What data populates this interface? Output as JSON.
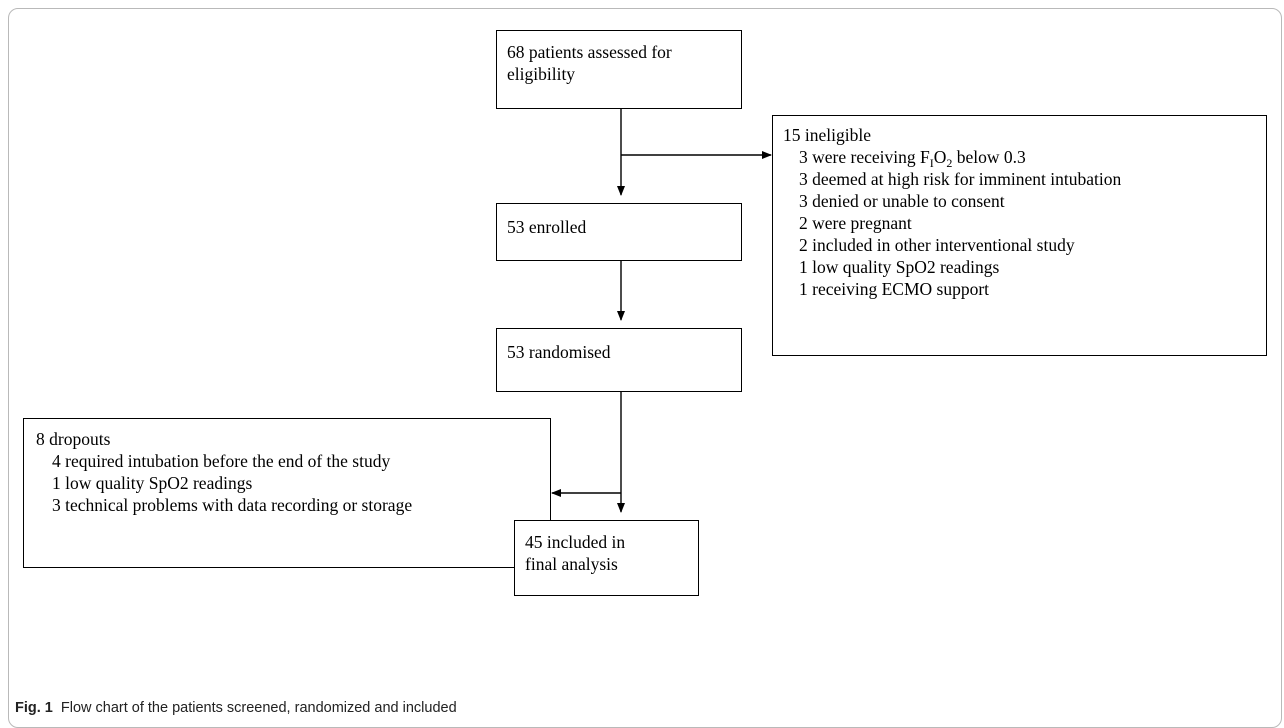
{
  "assessed": {
    "line1": "68 patients assessed for",
    "line2": "eligibility"
  },
  "ineligible": {
    "header": "15 ineligible",
    "items": [
      {
        "pre": "3 were receiving F",
        "sub1": "I",
        "mid": "O",
        "sub2": "2",
        "post": " below 0.3"
      },
      {
        "text": "3 deemed at high risk for imminent intubation"
      },
      {
        "text": "3 denied or unable to consent"
      },
      {
        "text": "2 were pregnant"
      },
      {
        "text": "2 included in other interventional study"
      },
      {
        "text": "1 low quality SpO2 readings"
      },
      {
        "text": "1 receiving ECMO support"
      }
    ]
  },
  "enrolled": {
    "label": "53 enrolled"
  },
  "randomised": {
    "label": "53 randomised"
  },
  "dropouts": {
    "header": "8 dropouts",
    "items": [
      "4 required intubation before the end of the study",
      "1 low quality SpO2 readings",
      "3 technical problems with data recording or storage"
    ]
  },
  "included": {
    "line1": "45 included in",
    "line2": "final analysis"
  },
  "caption": {
    "label": "Fig. 1",
    "text": "Flow chart of the patients screened, randomized and included"
  }
}
